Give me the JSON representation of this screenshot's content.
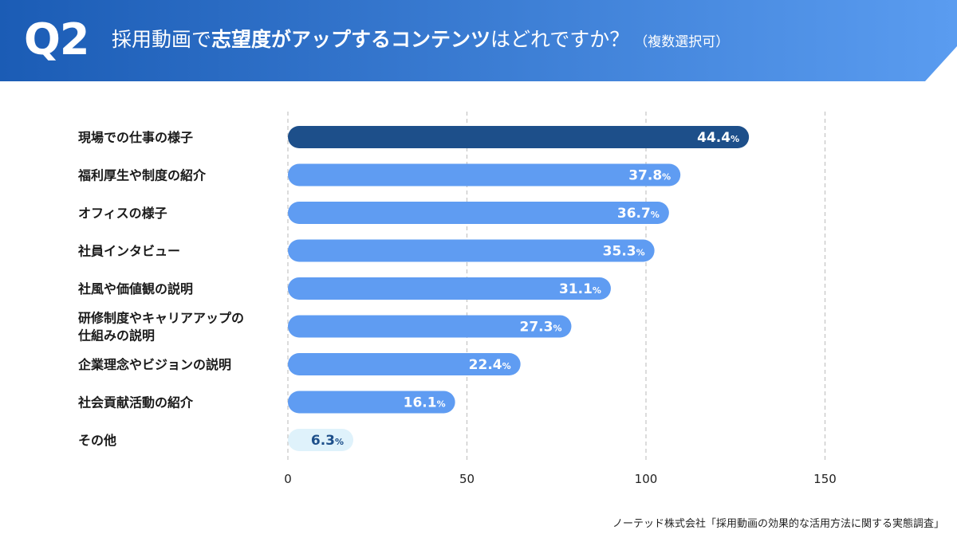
{
  "header": {
    "q_label": "Q2",
    "title_pre": "採用動画で",
    "title_em": "志望度がアップするコンテンツ",
    "title_post": "はどれですか？",
    "title_note": "（複数選択可）",
    "colors": {
      "left": "#1b5cb5",
      "right": "#5a9cf0"
    }
  },
  "chart_data": {
    "type": "bar",
    "orientation": "horizontal",
    "categories": [
      "現場での仕事の様子",
      "福利厚生や制度の紹介",
      "オフィスの様子",
      "社員インタビュー",
      "社風や価値観の説明",
      "研修制度やキャリアアップの\n仕組みの説明",
      "企業理念やビジョンの説明",
      "社会貢献活動の紹介",
      "その他"
    ],
    "values": [
      44.4,
      37.8,
      36.7,
      35.3,
      31.1,
      27.3,
      22.4,
      16.1,
      6.3
    ],
    "unit": "%",
    "xlim": [
      0,
      150
    ],
    "xticks": [
      0,
      50,
      100,
      150
    ],
    "grid": "vertical dashed",
    "colors": {
      "highlight": "#1d4f8a",
      "default": "#5f9cf2",
      "other": "#dff2fb"
    }
  },
  "source": "ノーテッド株式会社「採用動画の効果的な活用方法に関する実態調査」"
}
